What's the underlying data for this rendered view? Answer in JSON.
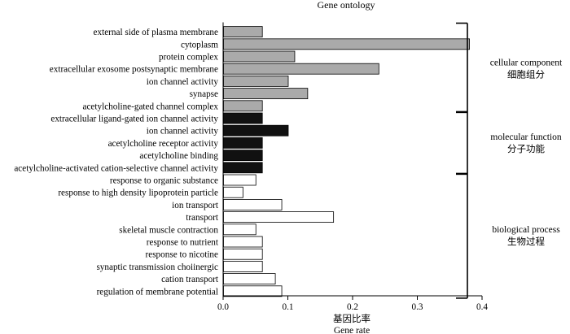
{
  "chart_data": {
    "type": "bar",
    "orientation": "horizontal",
    "title": "Gene ontology",
    "xlabel_cn": "基因比率",
    "xlabel": "Gene rate",
    "xlim": [
      0,
      0.4
    ],
    "xticks": [
      "0.0",
      "0.1",
      "0.2",
      "0.3",
      "0.4"
    ],
    "grid": false,
    "colors": {
      "cellular component": "#aaaaaa",
      "molecular function": "#111111",
      "biological process": "#ffffff"
    },
    "categories": [
      "external side of plasma membrane",
      "cytoplasm",
      "protein complex",
      "extracellular exosome postsynaptic membrane",
      "ion channel activity",
      "synapse",
      "acetylcholine-gated channel complex",
      "extracellular ligand-gated ion channel activity",
      "ion channel activity",
      "acetylcholine receptor activity",
      "acetylcholine binding",
      "acetylcholine-activated cation-selective channel activity",
      "response to organic substance",
      "response to high density lipoprotein particle",
      "ion transport",
      "transport",
      "skeletal muscle contraction",
      "response to nutrient",
      "response to nicotine",
      "synaptic transmission choiinergic",
      "cation transport",
      "regulation of membrane potential"
    ],
    "values": [
      0.06,
      0.38,
      0.11,
      0.24,
      0.1,
      0.13,
      0.06,
      0.06,
      0.1,
      0.06,
      0.06,
      0.06,
      0.05,
      0.03,
      0.09,
      0.17,
      0.05,
      0.06,
      0.06,
      0.06,
      0.08,
      0.09
    ],
    "groups": [
      {
        "name": "cellular component",
        "name_cn": "细胞组分",
        "start": 0,
        "end": 6
      },
      {
        "name": "molecular function",
        "name_cn": "分子功能",
        "start": 7,
        "end": 11
      },
      {
        "name": "biological process",
        "name_cn": "生物过程",
        "start": 12,
        "end": 21
      }
    ]
  }
}
